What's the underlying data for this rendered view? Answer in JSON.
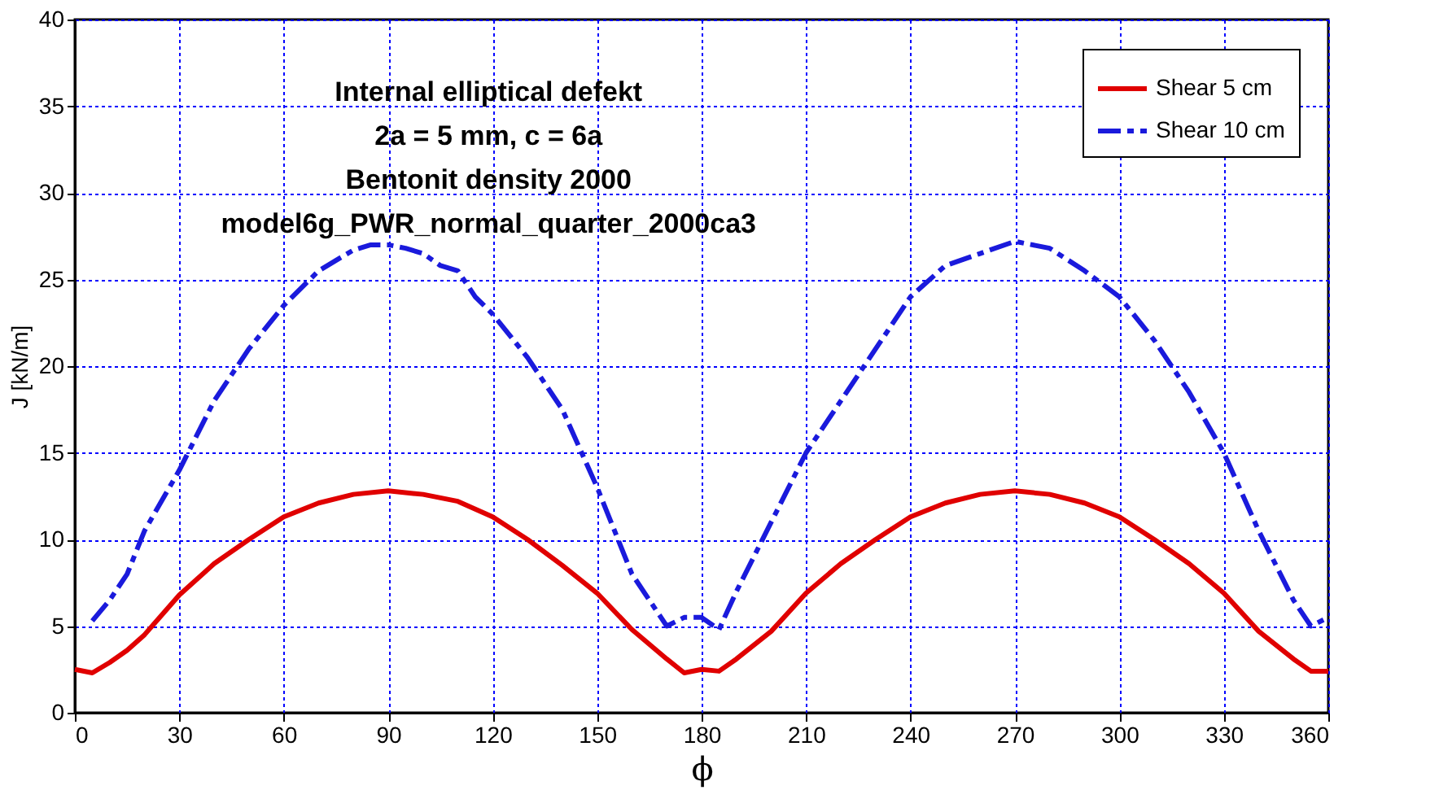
{
  "chart_data": {
    "type": "line",
    "xlabel": "ϕ",
    "ylabel": "J [kN/m]",
    "annotations": [
      "Internal elliptical defekt",
      "2a = 5 mm, c = 6a",
      "Bentonit density 2000",
      "model6g_PWR_normal_quarter_2000ca3"
    ],
    "xlim": [
      0,
      360
    ],
    "xticks": [
      0,
      30,
      60,
      90,
      120,
      150,
      180,
      210,
      240,
      270,
      300,
      330,
      360
    ],
    "ylim": [
      0,
      40
    ],
    "yticks": [
      0,
      5,
      10,
      15,
      20,
      25,
      30,
      35,
      40
    ],
    "grid": true,
    "legend": "top right",
    "marker": "none",
    "series": [
      {
        "name": "Shear 5 cm",
        "color": "#e00000",
        "line_style": "solid",
        "x": [
          0,
          5,
          10,
          15,
          20,
          30,
          40,
          50,
          60,
          70,
          80,
          90,
          100,
          110,
          120,
          130,
          140,
          150,
          160,
          170,
          175,
          180,
          185,
          190,
          200,
          210,
          220,
          230,
          240,
          250,
          260,
          270,
          280,
          290,
          300,
          310,
          320,
          330,
          340,
          350,
          355,
          360
        ],
        "values": [
          2.5,
          2.3,
          2.9,
          3.6,
          4.5,
          6.8,
          8.6,
          10,
          11.3,
          12.1,
          12.6,
          12.8,
          12.6,
          12.2,
          11.3,
          10,
          8.5,
          6.9,
          4.8,
          3.1,
          2.3,
          2.5,
          2.4,
          3.1,
          4.7,
          6.9,
          8.6,
          10,
          11.3,
          12.1,
          12.6,
          12.8,
          12.6,
          12.1,
          11.3,
          10,
          8.6,
          6.9,
          4.7,
          3.1,
          2.4,
          2.4
        ]
      },
      {
        "name": "Shear 10 cm",
        "color": "#1a1adc",
        "line_style": "dashed",
        "x": [
          5,
          10,
          15,
          20,
          30,
          40,
          50,
          60,
          70,
          80,
          85,
          90,
          95,
          100,
          105,
          110,
          115,
          120,
          130,
          140,
          150,
          160,
          170,
          175,
          180,
          185,
          190,
          200,
          210,
          220,
          230,
          240,
          250,
          260,
          270,
          280,
          290,
          300,
          310,
          320,
          330,
          340,
          350,
          355,
          360
        ],
        "values": [
          5.3,
          6.5,
          8,
          10.5,
          14,
          18,
          21,
          23.5,
          25.5,
          26.7,
          27,
          27,
          26.8,
          26.5,
          25.8,
          25.5,
          24,
          23,
          20.5,
          17.5,
          13,
          8,
          5,
          5.5,
          5.5,
          4.8,
          7,
          11,
          15,
          18,
          21,
          24,
          25.8,
          26.5,
          27.2,
          26.8,
          25.5,
          24,
          21.5,
          18.5,
          15,
          10.5,
          6.5,
          5,
          5.5
        ]
      }
    ]
  }
}
